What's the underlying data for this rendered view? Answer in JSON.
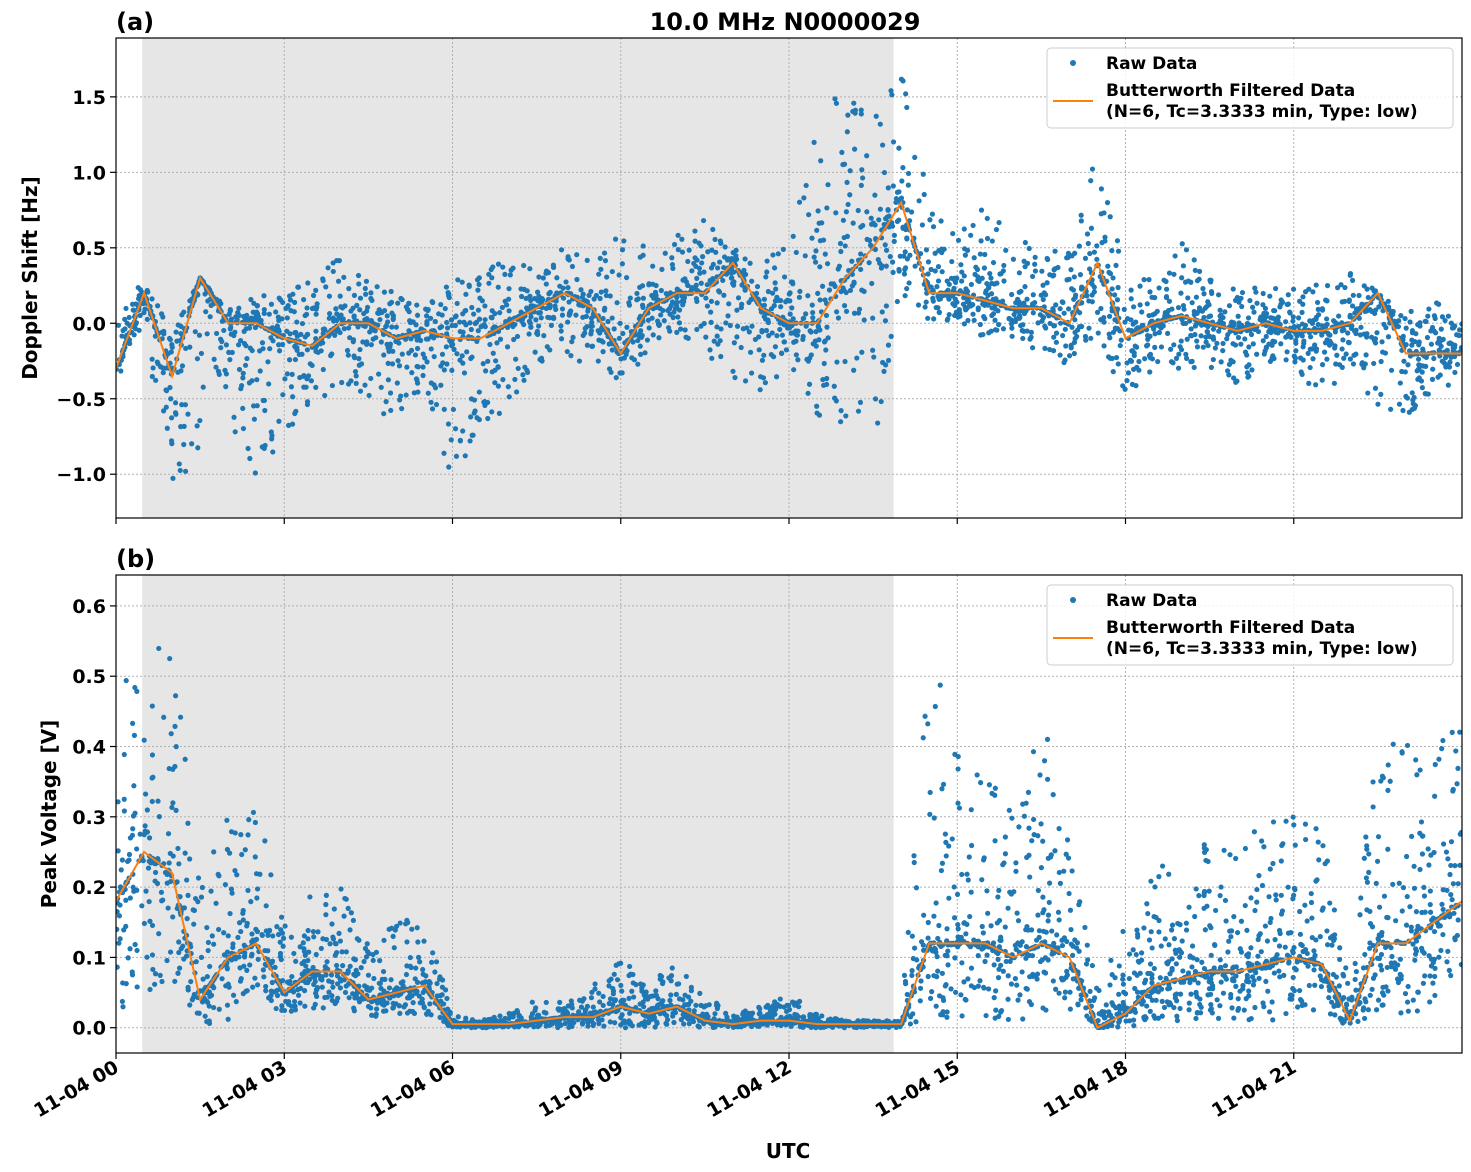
{
  "figure_title": "10.0 MHz N0000029",
  "xlabel": "UTC",
  "colors": {
    "raw": "#1f77b4",
    "filtered": "#ff7f0e",
    "shade": "#e6e6e6"
  },
  "chart_data": [
    {
      "panel_label": "(a)",
      "type": "scatter+line",
      "ylabel": "Doppler Shift [Hz]",
      "xlim": [
        "11-04 00:00",
        "11-05 00:00"
      ],
      "ylim": [
        -1.29,
        1.89
      ],
      "grid": true,
      "legend_position": "top-right",
      "x_ticks": [
        "11-04 00",
        "11-04 03",
        "11-04 06",
        "11-04 09",
        "11-04 12",
        "11-04 15",
        "11-04 18",
        "11-04 21"
      ],
      "y_ticks": [
        -1.0,
        -0.5,
        0.0,
        0.5,
        1.0,
        1.5
      ],
      "y_tick_labels": [
        "−1.0",
        "−0.5",
        "0.0",
        "0.5",
        "1.0",
        "1.5"
      ],
      "shaded_interval": [
        "11-04 00:28",
        "11-04 13:52"
      ],
      "legend": {
        "raw": "Raw Data",
        "filtered_line1": "Butterworth Filtered Data",
        "filtered_line2": "(N=6, Tc=3.3333 min, Type: low)"
      },
      "x": [
        "00:00",
        "00:30",
        "01:00",
        "01:30",
        "02:00",
        "02:30",
        "03:00",
        "03:30",
        "04:00",
        "04:30",
        "05:00",
        "05:30",
        "06:00",
        "06:30",
        "07:00",
        "07:30",
        "08:00",
        "08:30",
        "09:00",
        "09:30",
        "10:00",
        "10:30",
        "11:00",
        "11:30",
        "12:00",
        "12:30",
        "13:00",
        "13:30",
        "14:00",
        "14:30",
        "15:00",
        "15:30",
        "16:00",
        "16:30",
        "17:00",
        "17:30",
        "18:00",
        "18:30",
        "19:00",
        "19:30",
        "20:00",
        "20:30",
        "21:00",
        "21:30",
        "22:00",
        "22:30",
        "23:00",
        "23:30",
        "24:00"
      ],
      "filtered": [
        -0.3,
        0.2,
        -0.35,
        0.3,
        0.0,
        0.0,
        -0.1,
        -0.15,
        0.0,
        0.0,
        -0.1,
        -0.05,
        -0.1,
        -0.1,
        0.0,
        0.1,
        0.2,
        0.1,
        -0.2,
        0.1,
        0.2,
        0.2,
        0.4,
        0.1,
        0.0,
        0.0,
        0.3,
        0.5,
        0.8,
        0.2,
        0.2,
        0.15,
        0.1,
        0.1,
        0.0,
        0.4,
        -0.1,
        0.0,
        0.05,
        0.0,
        -0.05,
        0.0,
        -0.05,
        -0.05,
        0.0,
        0.2,
        -0.2,
        -0.2,
        -0.2
      ],
      "raw_lower": [
        -0.4,
        -0.1,
        -1.1,
        -0.9,
        -0.6,
        -1.1,
        -0.8,
        -0.6,
        -0.4,
        -0.5,
        -0.7,
        -0.4,
        -1.1,
        -0.7,
        -0.6,
        -0.3,
        -0.2,
        -0.3,
        -0.4,
        -0.2,
        -0.1,
        -0.2,
        -0.4,
        -0.5,
        -0.3,
        -0.7,
        -0.7,
        -0.9,
        0.2,
        0.0,
        0.0,
        -0.1,
        -0.1,
        -0.2,
        -0.3,
        -0.1,
        -0.5,
        -0.3,
        -0.3,
        -0.3,
        -0.4,
        -0.3,
        -0.3,
        -0.5,
        -0.3,
        -0.6,
        -0.6,
        -0.6,
        -0.4
      ],
      "raw_upper": [
        0.0,
        0.3,
        0.0,
        0.3,
        0.1,
        0.2,
        0.2,
        0.3,
        0.5,
        0.3,
        0.2,
        0.1,
        0.3,
        0.4,
        0.4,
        0.4,
        0.5,
        0.4,
        0.6,
        0.5,
        0.6,
        0.7,
        0.5,
        0.4,
        0.6,
        1.5,
        1.5,
        1.5,
        1.75,
        0.8,
        0.6,
        1.0,
        0.6,
        0.5,
        0.5,
        1.2,
        0.3,
        0.3,
        0.55,
        0.3,
        0.3,
        0.2,
        0.3,
        0.25,
        0.4,
        0.2,
        0.1,
        0.15,
        0.1
      ]
    },
    {
      "panel_label": "(b)",
      "type": "scatter+line",
      "ylabel": "Peak Voltage [V]",
      "xlim": [
        "11-04 00:00",
        "11-05 00:00"
      ],
      "ylim": [
        -0.036,
        0.644
      ],
      "grid": true,
      "legend_position": "top-right",
      "x_ticks": [
        "11-04 00",
        "11-04 03",
        "11-04 06",
        "11-04 09",
        "11-04 12",
        "11-04 15",
        "11-04 18",
        "11-04 21"
      ],
      "y_ticks": [
        0.0,
        0.1,
        0.2,
        0.3,
        0.4,
        0.5,
        0.6
      ],
      "y_tick_labels": [
        "0.0",
        "0.1",
        "0.2",
        "0.3",
        "0.4",
        "0.5",
        "0.6"
      ],
      "shaded_interval": [
        "11-04 00:28",
        "11-04 13:52"
      ],
      "legend": {
        "raw": "Raw Data",
        "filtered_line1": "Butterworth Filtered Data",
        "filtered_line2": "(N=6, Tc=3.3333 min, Type: low)"
      },
      "x": [
        "00:00",
        "00:30",
        "01:00",
        "01:30",
        "02:00",
        "02:30",
        "03:00",
        "03:30",
        "04:00",
        "04:30",
        "05:00",
        "05:30",
        "06:00",
        "06:30",
        "07:00",
        "07:30",
        "08:00",
        "08:30",
        "09:00",
        "09:30",
        "10:00",
        "10:30",
        "11:00",
        "11:30",
        "12:00",
        "12:30",
        "13:00",
        "13:30",
        "14:00",
        "14:30",
        "15:00",
        "15:30",
        "16:00",
        "16:30",
        "17:00",
        "17:30",
        "18:00",
        "18:30",
        "19:00",
        "19:30",
        "20:00",
        "20:30",
        "21:00",
        "21:30",
        "22:00",
        "22:30",
        "23:00",
        "23:30",
        "24:00"
      ],
      "filtered": [
        0.18,
        0.25,
        0.22,
        0.04,
        0.1,
        0.12,
        0.05,
        0.08,
        0.08,
        0.04,
        0.05,
        0.06,
        0.005,
        0.005,
        0.005,
        0.01,
        0.015,
        0.015,
        0.03,
        0.02,
        0.03,
        0.01,
        0.005,
        0.01,
        0.01,
        0.005,
        0.005,
        0.005,
        0.005,
        0.12,
        0.12,
        0.12,
        0.1,
        0.12,
        0.1,
        0.0,
        0.02,
        0.06,
        0.07,
        0.08,
        0.08,
        0.09,
        0.1,
        0.09,
        0.01,
        0.12,
        0.12,
        0.15,
        0.18
      ],
      "raw_lower": [
        0.02,
        0.05,
        0.05,
        0.0,
        0.01,
        0.02,
        0.02,
        0.02,
        0.02,
        0.01,
        0.02,
        0.02,
        0.0,
        0.0,
        0.0,
        0.0,
        0.0,
        0.0,
        0.0,
        0.0,
        0.0,
        0.0,
        0.0,
        0.0,
        0.0,
        0.0,
        0.0,
        0.0,
        0.0,
        0.01,
        0.01,
        0.01,
        0.01,
        0.01,
        0.02,
        0.0,
        0.0,
        0.01,
        0.01,
        0.01,
        0.01,
        0.01,
        0.01,
        0.02,
        0.0,
        0.02,
        0.02,
        0.02,
        0.05
      ],
      "raw_upper": [
        0.53,
        0.5,
        0.58,
        0.2,
        0.32,
        0.32,
        0.15,
        0.2,
        0.2,
        0.12,
        0.15,
        0.16,
        0.02,
        0.01,
        0.02,
        0.04,
        0.04,
        0.06,
        0.1,
        0.06,
        0.1,
        0.05,
        0.02,
        0.03,
        0.06,
        0.02,
        0.01,
        0.01,
        0.01,
        0.6,
        0.41,
        0.38,
        0.3,
        0.45,
        0.3,
        0.05,
        0.15,
        0.25,
        0.2,
        0.28,
        0.25,
        0.3,
        0.3,
        0.3,
        0.05,
        0.44,
        0.41,
        0.4,
        0.5
      ]
    }
  ]
}
